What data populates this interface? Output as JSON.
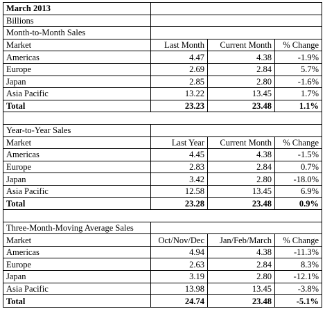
{
  "title": "March 2013",
  "unit": "Billions",
  "sections": [
    {
      "heading": "Month-to-Month Sales",
      "columns": [
        "Market",
        "Last Month",
        "Current Month",
        "% Change"
      ],
      "rows": [
        [
          "Americas",
          "4.47",
          "4.38",
          "-1.9%"
        ],
        [
          "Europe",
          "2.69",
          "2.84",
          "5.7%"
        ],
        [
          "Japan",
          "2.85",
          "2.80",
          "-1.6%"
        ],
        [
          "Asia Pacific",
          "13.22",
          "13.45",
          "1.7%"
        ]
      ],
      "total": [
        "Total",
        "23.23",
        "23.48",
        "1.1%"
      ]
    },
    {
      "heading": "Year-to-Year Sales",
      "columns": [
        "Market",
        "Last Year",
        "Current Month",
        "% Change"
      ],
      "rows": [
        [
          "Americas",
          "4.45",
          "4.38",
          "-1.5%"
        ],
        [
          "Europe",
          "2.83",
          "2.84",
          "0.7%"
        ],
        [
          "Japan",
          "3.42",
          "2.80",
          "-18.0%"
        ],
        [
          "Asia Pacific",
          "12.58",
          "13.45",
          "6.9%"
        ]
      ],
      "total": [
        "Total",
        "23.28",
        "23.48",
        "0.9%"
      ]
    },
    {
      "heading": "Three-Month-Moving Average Sales",
      "columns": [
        "Market",
        "Oct/Nov/Dec",
        "Jan/Feb/March",
        "% Change"
      ],
      "rows": [
        [
          "Americas",
          "4.94",
          "4.38",
          "-11.3%"
        ],
        [
          "Europe",
          "2.63",
          "2.84",
          "8.3%"
        ],
        [
          "Japan",
          "3.19",
          "2.80",
          "-12.1%"
        ],
        [
          "Asia Pacific",
          "13.98",
          "13.45",
          "-3.8%"
        ]
      ],
      "total": [
        "Total",
        "24.74",
        "23.48",
        "-5.1%"
      ]
    }
  ]
}
